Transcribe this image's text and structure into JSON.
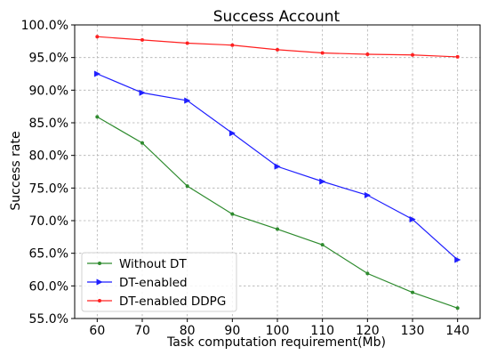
{
  "chart_data": {
    "type": "line",
    "title": "Success Account",
    "xlabel": "Task computation requirement(Mb)",
    "ylabel": "Success rate",
    "x": [
      60,
      70,
      80,
      90,
      100,
      110,
      120,
      130,
      140
    ],
    "xlim": [
      55,
      145
    ],
    "ylim": [
      0.55,
      1.0
    ],
    "x_ticks": [
      "60",
      "70",
      "80",
      "90",
      "100",
      "110",
      "120",
      "130",
      "140"
    ],
    "y_ticks": [
      {
        "value": 0.55,
        "label": "55.0%"
      },
      {
        "value": 0.6,
        "label": "60.0%"
      },
      {
        "value": 0.65,
        "label": "65.0%"
      },
      {
        "value": 0.7,
        "label": "70.0%"
      },
      {
        "value": 0.75,
        "label": "75.0%"
      },
      {
        "value": 0.8,
        "label": "80.0%"
      },
      {
        "value": 0.85,
        "label": "85.0%"
      },
      {
        "value": 0.9,
        "label": "90.0%"
      },
      {
        "value": 0.95,
        "label": "95.0%"
      },
      {
        "value": 1.0,
        "label": "100.0%"
      }
    ],
    "grid": true,
    "legend_position": "lower-left",
    "series": [
      {
        "name": "Without DT",
        "color": "#2e8b2e",
        "marker": "point",
        "values": [
          0.859,
          0.819,
          0.753,
          0.71,
          0.687,
          0.663,
          0.619,
          0.59,
          0.566
        ]
      },
      {
        "name": "DT-enabled",
        "color": "#1f1fff",
        "marker": "triangle-right",
        "values": [
          0.925,
          0.896,
          0.884,
          0.834,
          0.783,
          0.76,
          0.739,
          0.702,
          0.64
        ]
      },
      {
        "name": "DT-enabled DDPG",
        "color": "#ff2020",
        "marker": "point",
        "values": [
          0.982,
          0.977,
          0.972,
          0.969,
          0.962,
          0.957,
          0.955,
          0.954,
          0.951
        ]
      }
    ]
  }
}
